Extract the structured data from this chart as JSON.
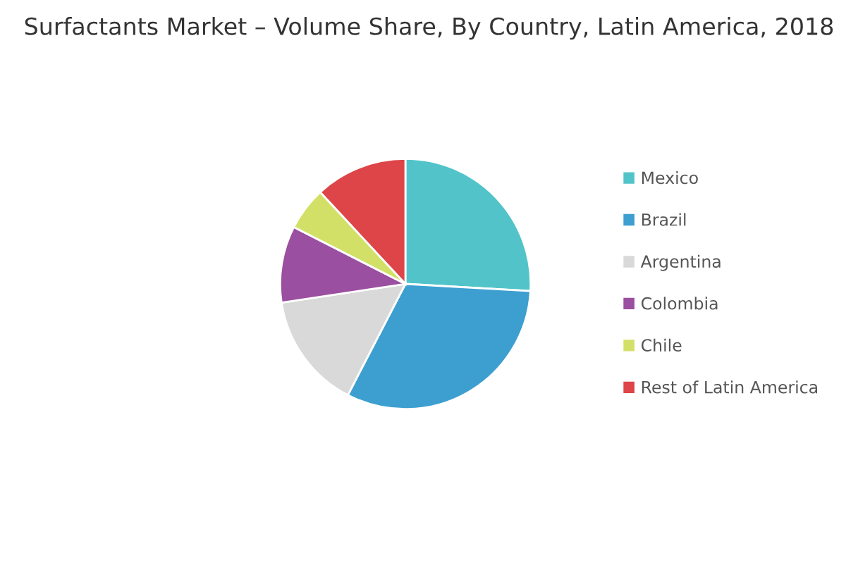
{
  "chart_data": {
    "type": "pie",
    "title": "Surfactants Market – Volume Share, By Country, Latin America, 2018",
    "categories": [
      "Mexico",
      "Brazil",
      "Argentina",
      "Colombia",
      "Chile",
      "Rest of Latin America"
    ],
    "values": [
      25.9,
      31.7,
      15,
      9.9,
      5.6,
      11.9
    ],
    "colors": [
      "#52c4c9",
      "#3d9fd0",
      "#d9d9d9",
      "#9b4fa0",
      "#d3e067",
      "#dd4548"
    ],
    "legend": "right"
  }
}
